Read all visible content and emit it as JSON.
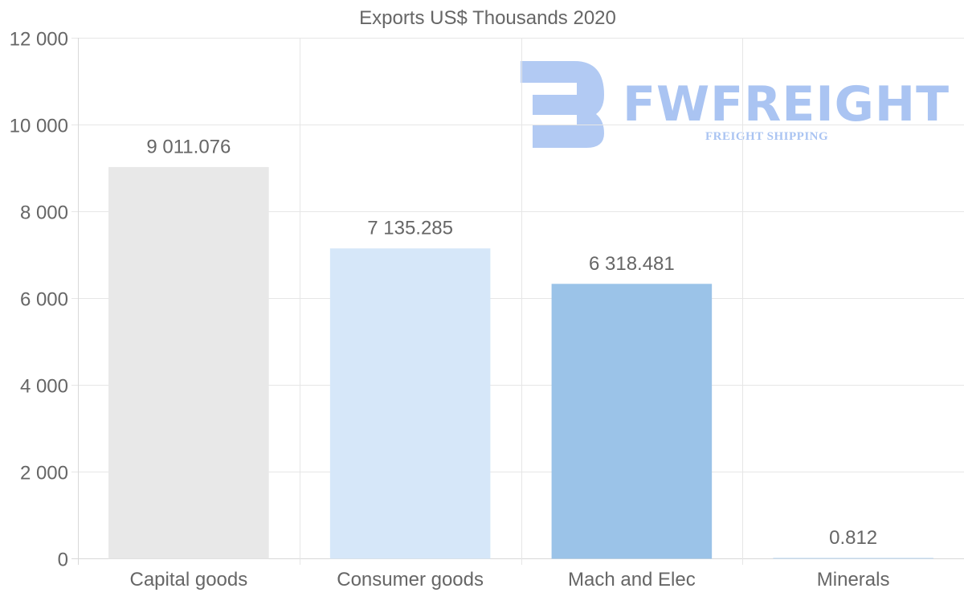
{
  "watermark": {
    "brand": "FWFREIGHT",
    "tagline": "FREIGHT SHIPPING",
    "color": "#aac4f2"
  },
  "chart_data": {
    "type": "bar",
    "title": "Exports US$ Thousands 2020",
    "xlabel": "",
    "ylabel": "",
    "ylim": [
      0,
      12000
    ],
    "yticks": [
      0,
      2000,
      4000,
      6000,
      8000,
      10000,
      12000
    ],
    "ytick_labels": [
      "0",
      "2 000",
      "4 000",
      "6 000",
      "8 000",
      "10 000",
      "12 000"
    ],
    "grid": true,
    "legend": "none",
    "categories": [
      "Capital goods",
      "Consumer goods",
      "Mach and Elec",
      "Minerals"
    ],
    "values": [
      9011.076,
      7135.285,
      6318.481,
      0.812
    ],
    "value_labels": [
      "9 011.076",
      "7 135.285",
      "6 318.481",
      "0.812"
    ],
    "colors": [
      "#e8e8e8",
      "#d6e7f9",
      "#9bc3e8",
      "#b7d4ef"
    ]
  }
}
